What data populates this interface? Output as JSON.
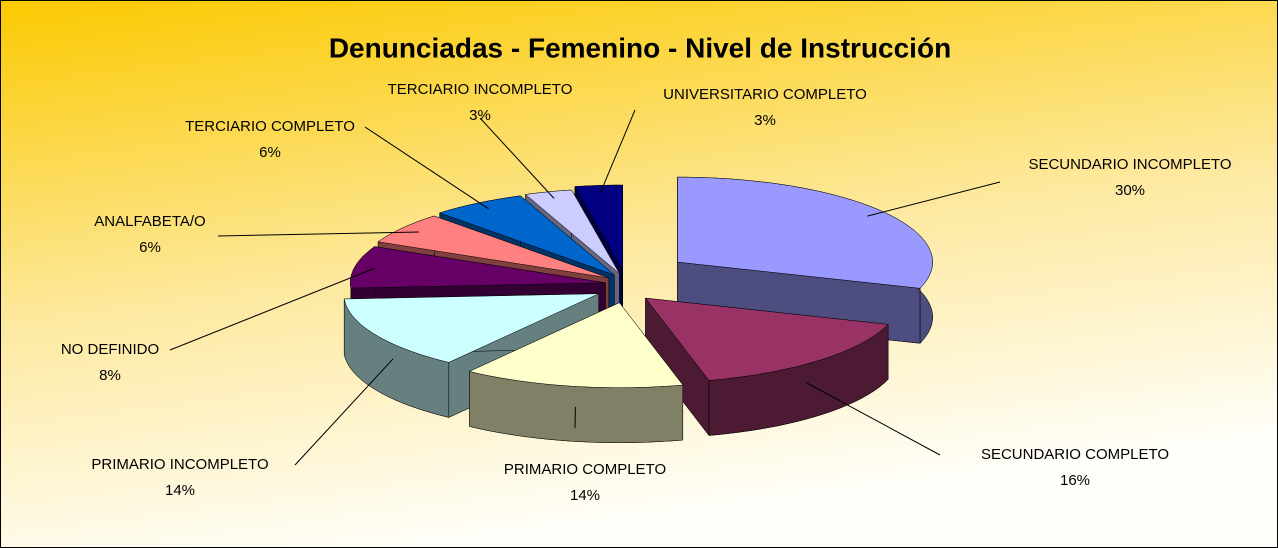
{
  "chart_data": {
    "type": "pie",
    "title": "Denunciadas - Femenino - Nivel de Instrucción",
    "categories": [
      "SECUNDARIO INCOMPLETO",
      "SECUNDARIO COMPLETO",
      "PRIMARIO COMPLETO",
      "PRIMARIO INCOMPLETO",
      "NO DEFINIDO",
      "ANALFABETA/O",
      "TERCIARIO COMPLETO",
      "TERCIARIO INCOMPLETO",
      "UNIVERSITARIO COMPLETO"
    ],
    "values": [
      30,
      16,
      14,
      14,
      8,
      6,
      6,
      3,
      3
    ],
    "value_labels": [
      "30%",
      "16%",
      "14%",
      "14%",
      "8%",
      "6%",
      "6%",
      "3%",
      "3%"
    ],
    "colors": [
      "#9999ff",
      "#993366",
      "#ffffcc",
      "#ccffff",
      "#660066",
      "#ff8080",
      "#0066cc",
      "#ccccff",
      "#000080"
    ]
  }
}
